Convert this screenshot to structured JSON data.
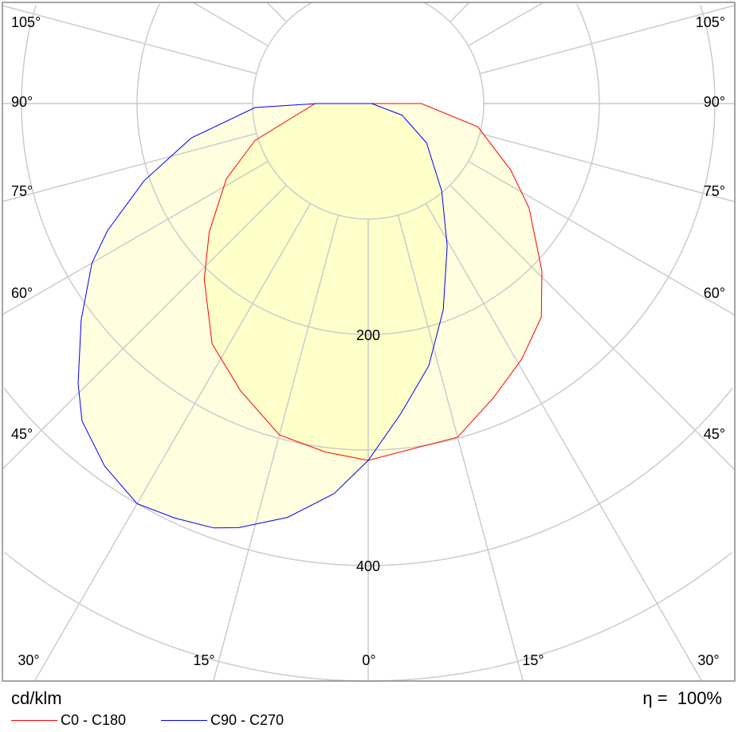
{
  "chart_data": {
    "type": "polar",
    "unit": "cd/klm",
    "radial_ticks": [
      100,
      200,
      300,
      400,
      500
    ],
    "radial_labels": [
      "200",
      "400"
    ],
    "angle_labels_side": [
      "105°",
      "90°",
      "75°",
      "60°",
      "45°"
    ],
    "angle_labels_bottom": [
      "30°",
      "15°",
      "0°",
      "15°",
      "30°"
    ],
    "grid": true,
    "fill_color": "#ffff99",
    "series": [
      {
        "name": "C0 - C180",
        "color": "#ff0000",
        "right_plane": "C0",
        "left_plane": "C180",
        "right": [
          [
            0,
            309
          ],
          [
            15,
            299
          ],
          [
            23,
            277
          ],
          [
            31,
            258
          ],
          [
            39,
            238
          ],
          [
            46,
            209
          ],
          [
            57,
            166
          ],
          [
            65,
            136
          ],
          [
            78,
            97
          ],
          [
            90,
            46
          ]
        ],
        "left": [
          [
            0,
            309
          ],
          [
            7,
            304
          ],
          [
            15,
            297
          ],
          [
            24,
            272
          ],
          [
            33,
            248
          ],
          [
            43,
            208
          ],
          [
            51,
            177
          ],
          [
            62,
            139
          ],
          [
            72,
            103
          ],
          [
            90,
            46
          ]
        ]
      },
      {
        "name": "C90 - C270",
        "color": "#0000ff",
        "right_plane": "C90",
        "left_plane": "C270",
        "right": [
          [
            0,
            309
          ],
          [
            6,
            270
          ],
          [
            13,
            233
          ],
          [
            20,
            190
          ],
          [
            29,
            141
          ],
          [
            40,
            99
          ],
          [
            56,
            61
          ],
          [
            71,
            31
          ],
          [
            90,
            3
          ]
        ],
        "left": [
          [
            0,
            309
          ],
          [
            5,
            339
          ],
          [
            11,
            365
          ],
          [
            17,
            384
          ],
          [
            20,
            391
          ],
          [
            25,
            396
          ],
          [
            30,
            400
          ],
          [
            36,
            388
          ],
          [
            42,
            370
          ],
          [
            46,
            349
          ],
          [
            53,
            311
          ],
          [
            60,
            276
          ],
          [
            64,
            251
          ],
          [
            71,
            205
          ],
          [
            79,
            156
          ],
          [
            88,
            98
          ],
          [
            90,
            44
          ]
        ]
      }
    ]
  },
  "footer": {
    "unit_label": "cd/klm",
    "efficiency_label": "η =",
    "efficiency_value": "100%"
  },
  "legend": [
    {
      "label": "C0 - C180",
      "color": "#ff0000"
    },
    {
      "label": "C90 - C270",
      "color": "#0000ff"
    }
  ]
}
